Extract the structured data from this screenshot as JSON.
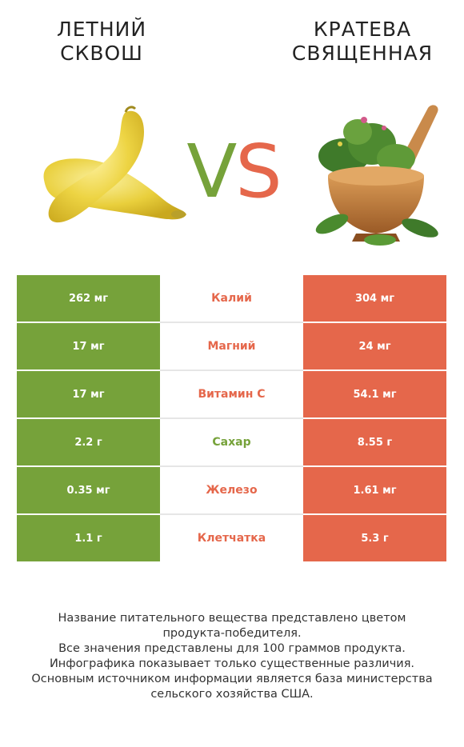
{
  "left_product": {
    "title": "ЛЕТНИЙ\nСКВОШ",
    "color": "#76a23a"
  },
  "right_product": {
    "title": "КРАТЕВА\nСВЯЩЕННАЯ",
    "color": "#e5674b"
  },
  "vs": {
    "v": "V",
    "s": "S"
  },
  "rows": [
    {
      "left": "262 мг",
      "name": "Калий",
      "right": "304 мг",
      "winner_color": "#e5674b"
    },
    {
      "left": "17 мг",
      "name": "Магний",
      "right": "24 мг",
      "winner_color": "#e5674b"
    },
    {
      "left": "17 мг",
      "name": "Витамин C",
      "right": "54.1 мг",
      "winner_color": "#e5674b"
    },
    {
      "left": "2.2 г",
      "name": "Сахар",
      "right": "8.55 г",
      "winner_color": "#76a23a"
    },
    {
      "left": "0.35 мг",
      "name": "Железо",
      "right": "1.61 мг",
      "winner_color": "#e5674b"
    },
    {
      "left": "1.1 г",
      "name": "Клетчатка",
      "right": "5.3 г",
      "winner_color": "#e5674b"
    }
  ],
  "footer": [
    "Название питательного вещества представлено цветом",
    "продукта-победителя.",
    "Все значения представлены для 100 граммов продукта.",
    "Инфографика показывает только существенные различия.",
    "Основным источником информации является база министерства",
    "сельского хозяйства США."
  ]
}
